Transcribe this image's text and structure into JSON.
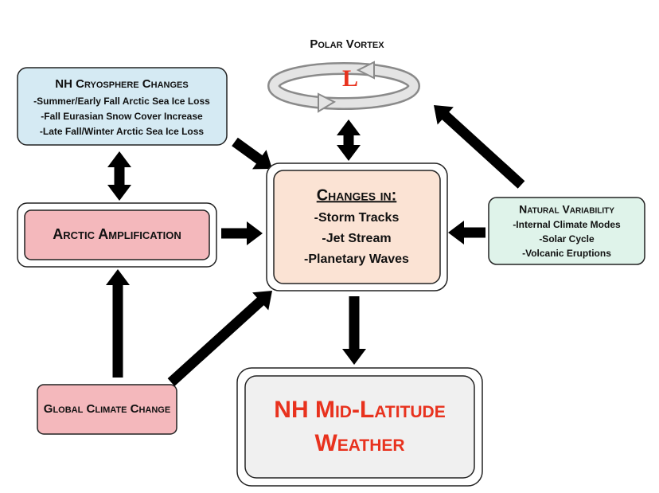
{
  "polar_vortex": {
    "title": "Polar Vortex",
    "symbol": "L"
  },
  "nodes": {
    "cryosphere": {
      "title": "NH Cryosphere Changes",
      "lines": [
        "-Summer/Early Fall Arctic Sea Ice Loss",
        "-Fall Eurasian Snow Cover Increase",
        "-Late Fall/Winter Arctic Sea Ice Loss"
      ]
    },
    "arctic": {
      "title": "Arctic Amplification"
    },
    "changes": {
      "title": "Changes in:",
      "lines": [
        "-Storm Tracks",
        "-Jet Stream",
        "-Planetary Waves"
      ]
    },
    "natural": {
      "title": "Natural Variability",
      "lines": [
        "-Internal Climate Modes",
        "-Solar Cycle",
        "-Volcanic Eruptions"
      ]
    },
    "global": {
      "title": "Global Climate Change"
    },
    "weather": {
      "title": "NH Mid-Latitude Weather"
    }
  }
}
